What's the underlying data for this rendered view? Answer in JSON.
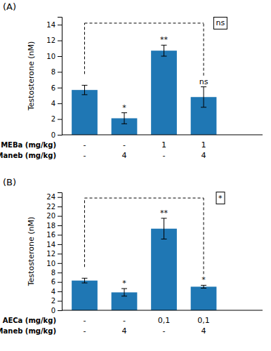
{
  "chart_data": [
    {
      "type": "bar",
      "title": "(A)",
      "ylabel": "Testosterone (nM)",
      "values": [
        5.7,
        2.1,
        10.7,
        4.8
      ],
      "errors": [
        0.6,
        0.7,
        0.7,
        1.3
      ],
      "ylim": [
        0,
        15
      ],
      "yticks": [
        0,
        2,
        4,
        6,
        8,
        10,
        12,
        14
      ],
      "grid": false,
      "category_rows": [
        {
          "name": "MEBa (mg/kg)",
          "labels": [
            "-",
            "-",
            "1",
            "1"
          ]
        },
        {
          "name": "Maneb (mg/kg)",
          "labels": [
            "-",
            "4",
            "-",
            "4"
          ]
        }
      ],
      "sig_labels": [
        null,
        "*",
        "**",
        "ns"
      ],
      "bracket": {
        "y": 14.2,
        "label": "ns"
      }
    },
    {
      "type": "bar",
      "title": "(B)",
      "ylabel": "Testosterone (nM)",
      "values": [
        6.3,
        3.8,
        17.3,
        5.0
      ],
      "errors": [
        0.5,
        0.8,
        2.2,
        0.3
      ],
      "ylim": [
        0,
        25
      ],
      "yticks": [
        0,
        2,
        4,
        6,
        8,
        10,
        12,
        14,
        16,
        18,
        20,
        22,
        24
      ],
      "grid": false,
      "category_rows": [
        {
          "name": "AECa (mg/kg)",
          "labels": [
            "-",
            "-",
            "0,1",
            "0,1"
          ]
        },
        {
          "name": "Maneb (mg/kg)",
          "labels": [
            "-",
            "4",
            "-",
            "4"
          ]
        }
      ],
      "sig_labels": [
        null,
        "*",
        "**",
        "*"
      ],
      "bracket": {
        "y": 23.8,
        "label": "*"
      }
    }
  ]
}
